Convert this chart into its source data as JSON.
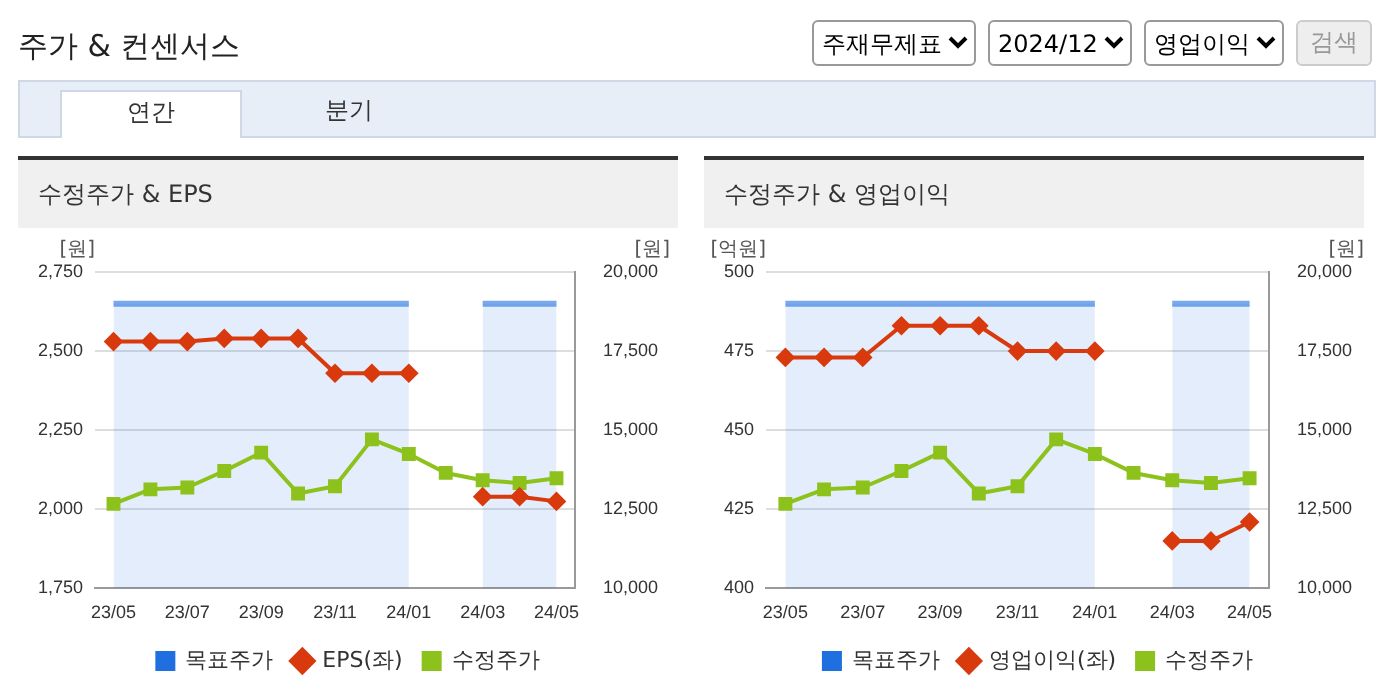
{
  "chart_data": [
    {
      "type": "line",
      "title": "수정주가 & EPS",
      "ylabel": "[원]",
      "y2label": "[원]",
      "annotations": [
        "주가 & 컨센서스",
        "주재무제표",
        "2024/12",
        "영업이익",
        "검색",
        "연간",
        "분기"
      ],
      "categories": [
        "23/05",
        null,
        "23/07",
        null,
        "23/09",
        null,
        "23/11",
        null,
        "24/01",
        null,
        "24/03",
        null,
        "24/05"
      ],
      "series": [
        {
          "name": "목표주가",
          "type": "area",
          "axis": "y2",
          "color": "#1f6fe0",
          "values": [
            19000,
            19000,
            19000,
            19000,
            19000,
            19000,
            19000,
            19000,
            19000,
            null,
            19000,
            19000,
            19000
          ]
        },
        {
          "name": "EPS(좌)",
          "color": "#d83a0e",
          "marker": "diamond",
          "values": [
            2530,
            2530,
            2530,
            2540,
            2540,
            2540,
            2430,
            2430,
            2430,
            null,
            2040,
            2040,
            2025
          ]
        },
        {
          "name": "수정주가",
          "type": "line",
          "axis": "y2",
          "color": "#8cc21b",
          "marker": "square",
          "values": [
            12670,
            13130,
            13190,
            13710,
            14290,
            13000,
            13230,
            14710,
            14250,
            13650,
            13420,
            13330,
            13480
          ]
        }
      ],
      "ylim": [
        1750,
        2750
      ],
      "yticks": [
        {
          "value": 1750,
          "label": "1,750"
        },
        {
          "value": 2000,
          "label": "2,000"
        },
        {
          "value": 2250,
          "label": "2,250"
        },
        {
          "value": 2500,
          "label": "2,500"
        },
        {
          "value": 2750,
          "label": "2,750"
        }
      ],
      "y2lim": [
        10000,
        20000
      ],
      "y2ticks": [
        {
          "value": 10000,
          "label": "10,000"
        },
        {
          "value": 12500,
          "label": "12,500"
        },
        {
          "value": 15000,
          "label": "15,000"
        },
        {
          "value": 17500,
          "label": "17,500"
        },
        {
          "value": 20000,
          "label": "20,000"
        }
      ],
      "grid": "y",
      "legend": "bottom"
    },
    {
      "type": "line",
      "title": "수정주가 & 영업이익",
      "ylabel": "[억원]",
      "y2label": "[원]",
      "categories": [
        "23/05",
        null,
        "23/07",
        null,
        "23/09",
        null,
        "23/11",
        null,
        "24/01",
        null,
        "24/03",
        null,
        "24/05"
      ],
      "series": [
        {
          "name": "목표주가",
          "type": "area",
          "axis": "y2",
          "color": "#1f6fe0",
          "values": [
            19000,
            19000,
            19000,
            19000,
            19000,
            19000,
            19000,
            19000,
            19000,
            null,
            19000,
            19000,
            19000
          ]
        },
        {
          "name": "영업이익(좌)",
          "color": "#d83a0e",
          "marker": "diamond",
          "values": [
            473,
            473,
            473,
            483,
            483,
            483,
            475,
            475,
            475,
            null,
            415,
            415,
            421
          ]
        },
        {
          "name": "수정주가",
          "type": "line",
          "axis": "y2",
          "color": "#8cc21b",
          "marker": "square",
          "values": [
            12670,
            13130,
            13190,
            13710,
            14290,
            13000,
            13230,
            14710,
            14250,
            13650,
            13420,
            13330,
            13480
          ]
        }
      ],
      "ylim": [
        400,
        500
      ],
      "yticks": [
        400,
        425,
        450,
        475,
        500
      ],
      "y2lim": [
        10000,
        20000
      ],
      "y2ticks": [
        {
          "value": 10000,
          "label": "10,000"
        },
        {
          "value": 12500,
          "label": "12,500"
        },
        {
          "value": 15000,
          "label": "15,000"
        },
        {
          "value": 17500,
          "label": "17,500"
        },
        {
          "value": 20000,
          "label": "20,000"
        }
      ],
      "grid": "y",
      "legend": "bottom"
    }
  ]
}
